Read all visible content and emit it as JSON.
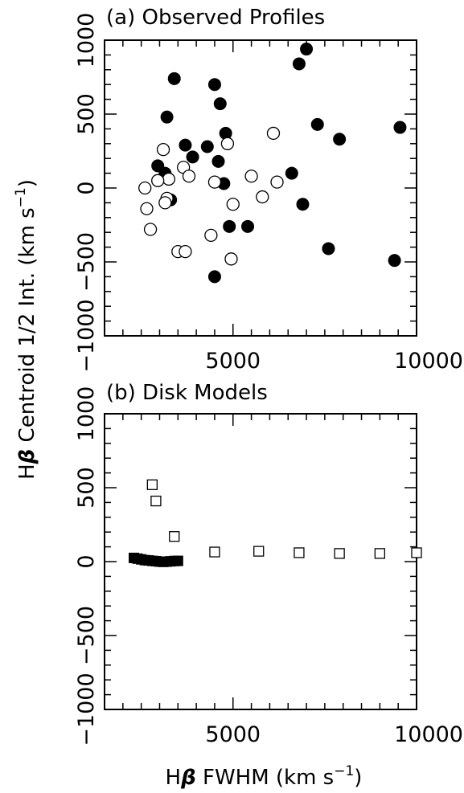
{
  "figure": {
    "ylabel_prefix": "H",
    "ylabel_beta": "β",
    "ylabel_main": " Centroid 1/2 Int. (km s",
    "ylabel_sup": "−1",
    "ylabel_close": ")",
    "xlabel_prefix": "H",
    "xlabel_beta": "β",
    "xlabel_main": " FWHM (km s",
    "xlabel_sup": "−1",
    "xlabel_close": ")"
  },
  "chart_data": [
    {
      "type": "scatter",
      "title": "(a) Observed Profiles",
      "xlim": [
        1500,
        10000
      ],
      "ylim": [
        -1000,
        1000
      ],
      "x_ticks": [
        5000,
        10000
      ],
      "x_ticklabels": [
        "5000",
        "10000"
      ],
      "y_ticks": [
        -1000,
        -500,
        0,
        500,
        1000
      ],
      "y_ticklabels": [
        "−1000",
        "−500",
        "0",
        "500",
        "1000"
      ],
      "series": [
        {
          "marker": "filled-circle",
          "points": [
            [
              7000,
              940
            ],
            [
              6800,
              840
            ],
            [
              3400,
              740
            ],
            [
              4500,
              700
            ],
            [
              4650,
              570
            ],
            [
              3200,
              480
            ],
            [
              7300,
              430
            ],
            [
              9550,
              410
            ],
            [
              4800,
              370
            ],
            [
              7900,
              330
            ],
            [
              3700,
              290
            ],
            [
              4300,
              280
            ],
            [
              3900,
              210
            ],
            [
              4600,
              180
            ],
            [
              2950,
              150
            ],
            [
              3150,
              100
            ],
            [
              6600,
              100
            ],
            [
              4750,
              30
            ],
            [
              3300,
              -80
            ],
            [
              6900,
              -110
            ],
            [
              4900,
              -260
            ],
            [
              5400,
              -260
            ],
            [
              7600,
              -410
            ],
            [
              9400,
              -490
            ],
            [
              4500,
              -600
            ]
          ]
        },
        {
          "marker": "open-circle",
          "points": [
            [
              6100,
              370
            ],
            [
              4850,
              300
            ],
            [
              3100,
              260
            ],
            [
              3650,
              140
            ],
            [
              3800,
              80
            ],
            [
              5500,
              80
            ],
            [
              3250,
              60
            ],
            [
              2950,
              50
            ],
            [
              4500,
              40
            ],
            [
              6200,
              40
            ],
            [
              2600,
              0
            ],
            [
              5800,
              -60
            ],
            [
              3200,
              -70
            ],
            [
              3150,
              -100
            ],
            [
              5000,
              -110
            ],
            [
              2650,
              -140
            ],
            [
              2750,
              -280
            ],
            [
              4400,
              -320
            ],
            [
              3500,
              -430
            ],
            [
              3700,
              -430
            ],
            [
              4950,
              -480
            ]
          ]
        }
      ]
    },
    {
      "type": "scatter",
      "title": "(b) Disk Models",
      "xlim": [
        1500,
        10000
      ],
      "ylim": [
        -1000,
        1000
      ],
      "x_ticks": [
        5000,
        10000
      ],
      "x_ticklabels": [
        "5000",
        "10000"
      ],
      "y_ticks": [
        -1000,
        -500,
        0,
        500,
        1000
      ],
      "y_ticklabels": [
        "−1000",
        "−500",
        "0",
        "500",
        "1000"
      ],
      "series": [
        {
          "marker": "open-square",
          "points": [
            [
              2800,
              520
            ],
            [
              2900,
              410
            ],
            [
              3400,
              170
            ],
            [
              4500,
              65
            ],
            [
              5700,
              70
            ],
            [
              6800,
              60
            ],
            [
              7900,
              55
            ],
            [
              9000,
              55
            ],
            [
              10000,
              60
            ]
          ]
        },
        {
          "marker": "filled-square",
          "points": [
            [
              2300,
              25
            ],
            [
              2400,
              20
            ],
            [
              2500,
              15
            ],
            [
              2600,
              10
            ],
            [
              2700,
              8
            ],
            [
              2800,
              5
            ],
            [
              2900,
              3
            ],
            [
              3000,
              0
            ],
            [
              3100,
              -2
            ],
            [
              3200,
              0
            ],
            [
              3300,
              2
            ],
            [
              3400,
              4
            ],
            [
              3500,
              5
            ]
          ]
        }
      ]
    }
  ]
}
